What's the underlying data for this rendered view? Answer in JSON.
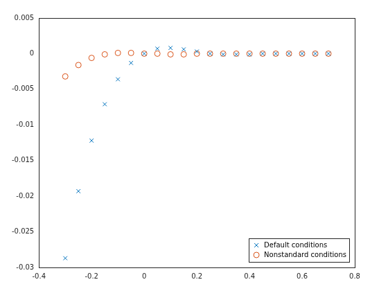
{
  "chart_data": {
    "type": "scatter",
    "x": [
      -0.3,
      -0.25,
      -0.2,
      -0.15,
      -0.1,
      -0.05,
      0,
      0.05,
      0.1,
      0.15,
      0.2,
      0.25,
      0.3,
      0.35,
      0.4,
      0.45,
      0.5,
      0.55,
      0.6,
      0.65,
      0.7
    ],
    "series": [
      {
        "name": "Default conditions",
        "color": "#0072bd",
        "marker": "x",
        "values": [
          -0.0287,
          -0.0193,
          -0.0122,
          -0.0071,
          -0.0036,
          -0.0013,
          0,
          0.0007,
          0.0008,
          0.0006,
          0.0003,
          0,
          -0.0001,
          -0.0001,
          -0.0001,
          0,
          0,
          0,
          0,
          0,
          0
        ]
      },
      {
        "name": "Nonstandard conditions",
        "color": "#d95319",
        "marker": "o",
        "values": [
          -0.0032,
          -0.0016,
          -0.0006,
          -0.0001,
          0.0001,
          0.0001,
          0,
          0,
          -0.0001,
          -0.0001,
          0,
          0,
          0,
          0,
          0,
          0,
          0,
          0,
          0,
          0,
          0
        ]
      }
    ],
    "xlim": [
      -0.4,
      0.8
    ],
    "xticks": [
      -0.4,
      -0.2,
      0,
      0.2,
      0.4,
      0.6,
      0.8
    ],
    "ylim": [
      -0.03,
      0.005
    ],
    "yticks": [
      -0.03,
      -0.025,
      -0.02,
      -0.015,
      -0.01,
      -0.005,
      0,
      0.005
    ],
    "grid": false,
    "legend": "bottom right"
  }
}
